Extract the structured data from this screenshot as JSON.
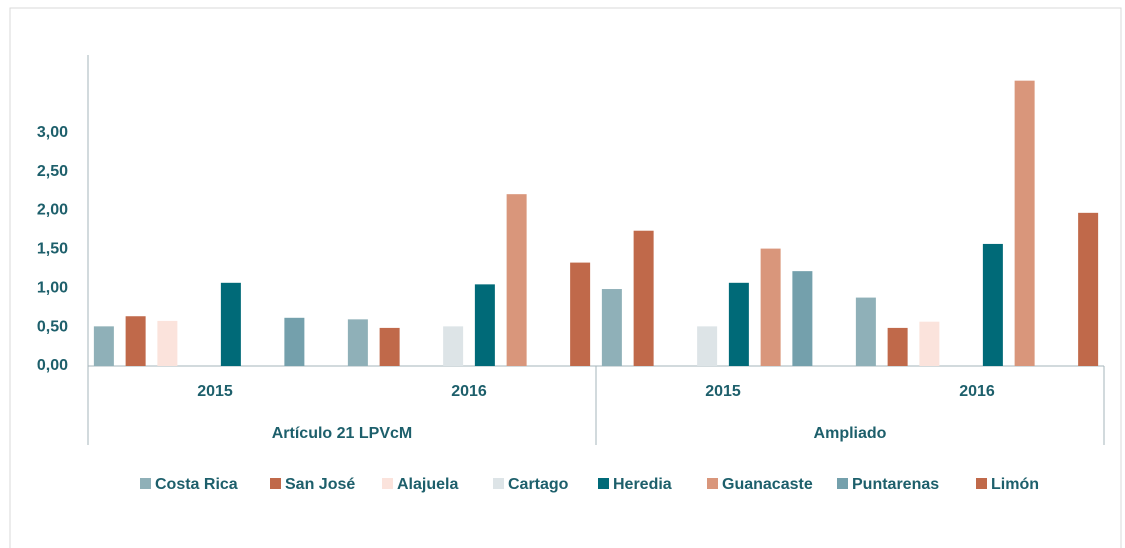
{
  "chart_data": {
    "type": "bar",
    "category_groups": [
      {
        "name": "Artículo 21 LPVcM",
        "categories": [
          "2015",
          "2016"
        ]
      },
      {
        "name": "Ampliado",
        "categories": [
          "2015",
          "2016"
        ]
      }
    ],
    "series": [
      {
        "name": "Costa Rica",
        "color": "#8fb0b8",
        "values": [
          0.51,
          0.6,
          0.99,
          0.88
        ]
      },
      {
        "name": "San José",
        "color": "#c0694a",
        "values": [
          0.64,
          0.49,
          1.74,
          0.49
        ]
      },
      {
        "name": "Alajuela",
        "color": "#fbe3dc",
        "values": [
          0.58,
          null,
          null,
          0.57
        ]
      },
      {
        "name": "Cartago",
        "color": "#dde4e7",
        "values": [
          null,
          0.51,
          0.51,
          null
        ]
      },
      {
        "name": "Heredia",
        "color": "#006a78",
        "values": [
          1.07,
          1.05,
          1.07,
          1.57
        ]
      },
      {
        "name": "Guanacaste",
        "color": "#d9967b",
        "values": [
          null,
          2.21,
          1.51,
          3.67
        ]
      },
      {
        "name": "Puntarenas",
        "color": "#74a0ac",
        "values": [
          0.62,
          null,
          1.22,
          null
        ]
      },
      {
        "name": "Limón",
        "color": "#c0694a",
        "values": [
          null,
          1.33,
          null,
          1.97
        ]
      }
    ],
    "ylim": [
      0,
      4
    ],
    "yticks": [
      {
        "value": 0,
        "label": "0,00"
      },
      {
        "value": 0.5,
        "label": "0,50"
      },
      {
        "value": 1,
        "label": "1,00"
      },
      {
        "value": 1.5,
        "label": "1,50"
      },
      {
        "value": 2,
        "label": "2,00"
      },
      {
        "value": 2.5,
        "label": "2,50"
      },
      {
        "value": 3,
        "label": "3,00"
      }
    ],
    "legend": "bottom"
  }
}
